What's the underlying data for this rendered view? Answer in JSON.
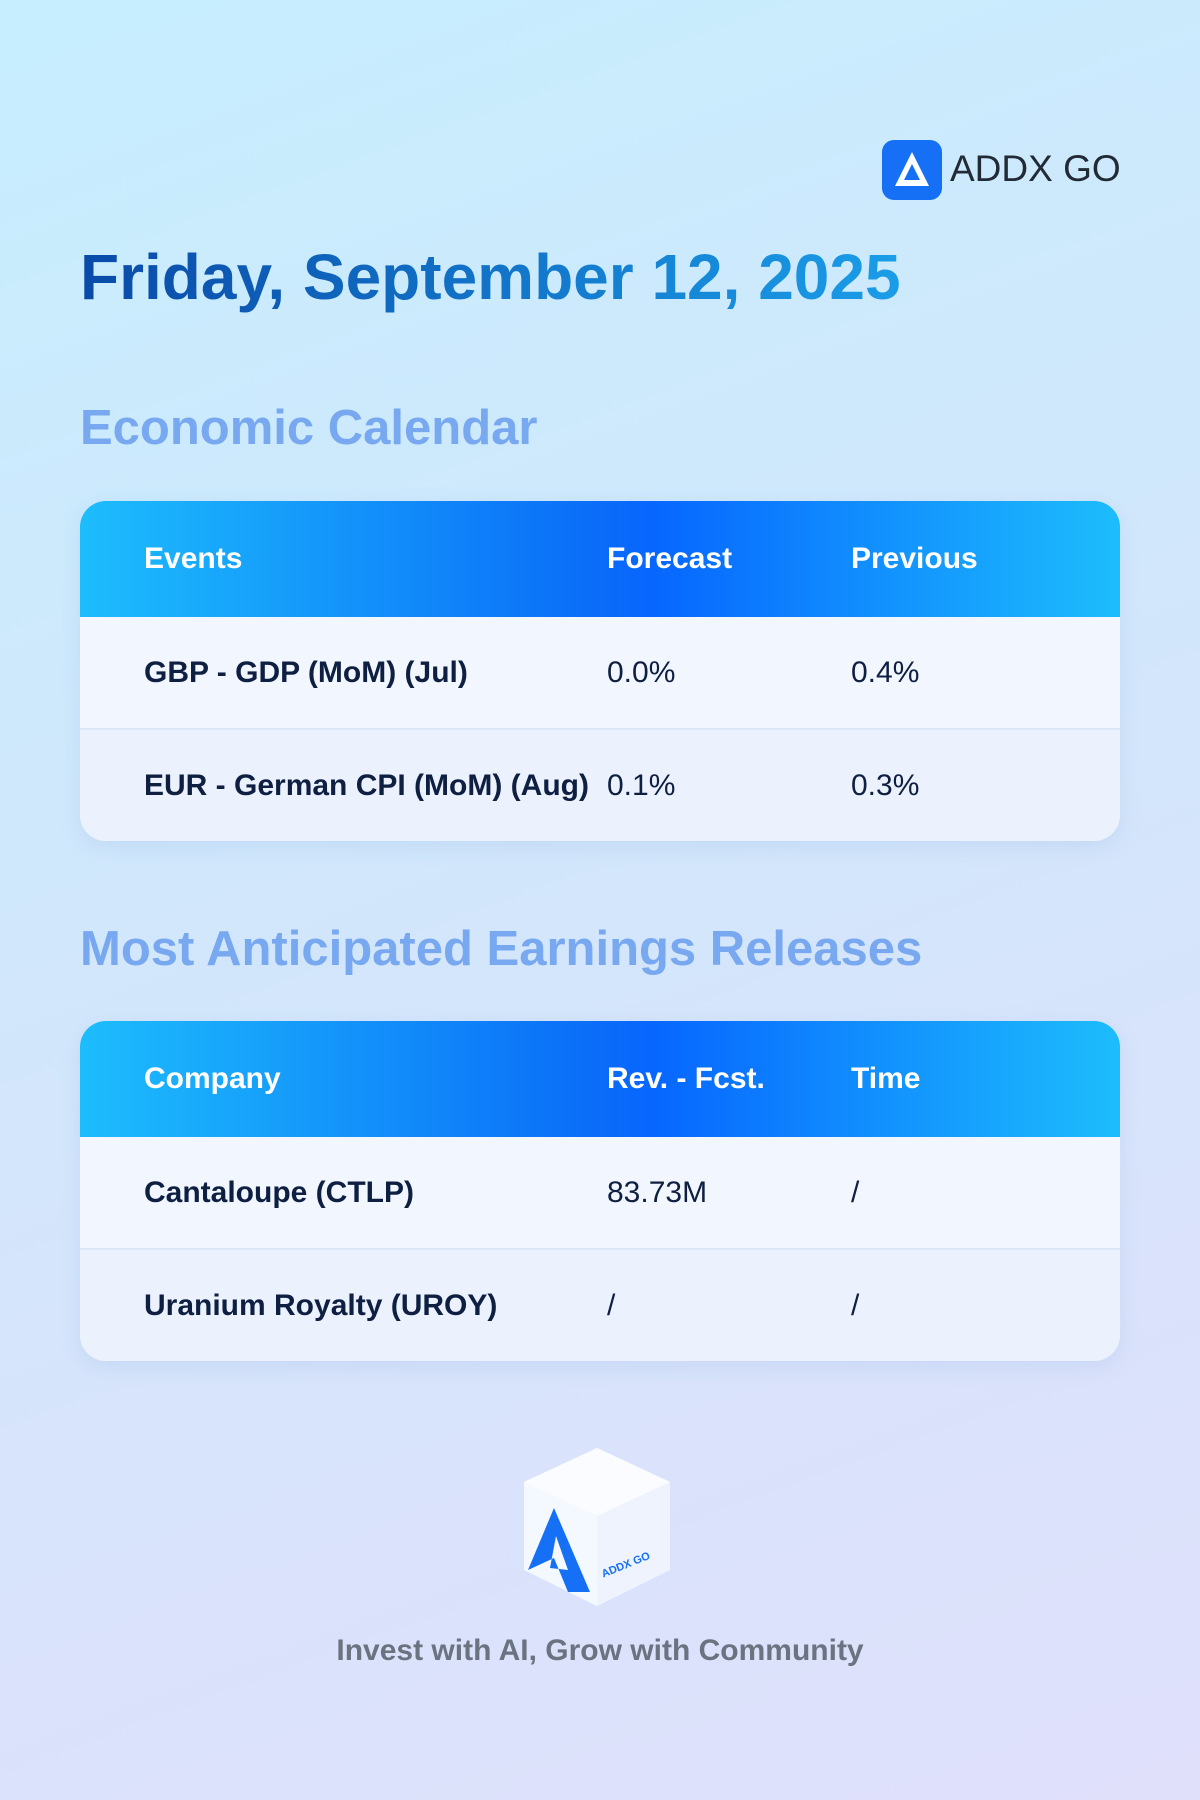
{
  "header": {
    "brand": "ADDX GO",
    "date": "Friday, September 12, 2025"
  },
  "economic_calendar": {
    "title": "Economic Calendar",
    "columns": [
      "Events",
      "Forecast",
      "Previous"
    ],
    "rows": [
      [
        "GBP - GDP (MoM) (Jul)",
        "0.0%",
        "0.4%"
      ],
      [
        "EUR - German CPI (MoM) (Aug)",
        "0.1%",
        "0.3%"
      ]
    ]
  },
  "earnings": {
    "title": "Most Anticipated Earnings Releases",
    "columns": [
      "Company",
      "Rev. - Fcst.",
      "Time"
    ],
    "rows": [
      [
        "Cantaloupe (CTLP)",
        "83.73M",
        "/"
      ],
      [
        "Uranium Royalty (UROY)",
        "/",
        "/"
      ]
    ]
  },
  "footer": {
    "tagline": "Invest with AI, Grow with Community"
  }
}
